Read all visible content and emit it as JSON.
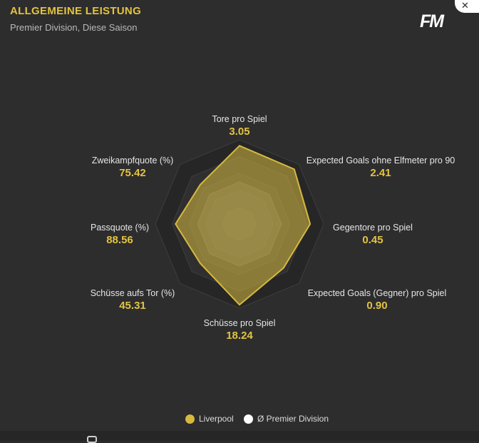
{
  "header": {
    "title": "ALLGEMEINE LEISTUNG",
    "subtitle": "Premier Division, Diese Saison",
    "logo_text": "FM"
  },
  "close_icon": "close-icon",
  "colors": {
    "team": "#d6b93f",
    "league": "#ffffff",
    "accent": "#e3c342",
    "background": "#2d2d2d"
  },
  "chart_data": {
    "type": "radar",
    "axes": [
      {
        "label": "Tore pro Spiel",
        "value": "3.05"
      },
      {
        "label": "Expected Goals ohne Elfmeter pro 90",
        "value": "2.41"
      },
      {
        "label": "Gegentore pro Spiel",
        "value": "0.45"
      },
      {
        "label": "Expected Goals (Gegner) pro Spiel",
        "value": "0.90"
      },
      {
        "label": "Schüsse pro Spiel",
        "value": "18.24"
      },
      {
        "label": "Schüsse aufs Tor (%)",
        "value": "45.31"
      },
      {
        "label": "Passquote (%)",
        "value": "88.56"
      },
      {
        "label": "Zweikampfquote (%)",
        "value": "75.42"
      }
    ],
    "series": [
      {
        "name": "Liverpool",
        "normalized": [
          0.93,
          0.92,
          0.84,
          0.74,
          0.96,
          0.66,
          0.76,
          0.66
        ]
      },
      {
        "name": "Ø Premier Division",
        "normalized": [
          0.5,
          0.5,
          0.5,
          0.5,
          0.5,
          0.5,
          0.5,
          0.5
        ]
      }
    ],
    "legend": [
      "Liverpool",
      "Ø Premier Division"
    ],
    "legend_position": "bottom-center",
    "rings": 5
  }
}
